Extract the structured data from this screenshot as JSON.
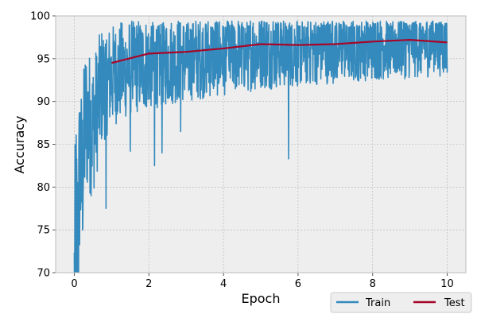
{
  "chart_data": {
    "type": "line",
    "title": "",
    "xlabel": "Epoch",
    "ylabel": "Accuracy",
    "xlim": [
      -0.5,
      10.5
    ],
    "ylim": [
      70,
      100
    ],
    "xticks": [
      0,
      2,
      4,
      6,
      8,
      10
    ],
    "yticks": [
      70,
      75,
      80,
      85,
      90,
      95,
      100
    ],
    "grid": true,
    "legend_position": "bottom-right",
    "colors": {
      "train": "#348abd",
      "test": "#a60628",
      "panel": "#eeeeee",
      "grid": "#b2b2b2"
    },
    "series": [
      {
        "name": "Train",
        "style": "noisy per-iteration line",
        "x_range": [
          0,
          10
        ],
        "points": [
          [
            0.0,
            68
          ],
          [
            0.05,
            76
          ],
          [
            0.1,
            72
          ],
          [
            0.15,
            84
          ],
          [
            0.2,
            80
          ],
          [
            0.3,
            88
          ],
          [
            0.5,
            87
          ],
          [
            0.75,
            92
          ],
          [
            1.0,
            93
          ],
          [
            1.5,
            94
          ],
          [
            2.0,
            94.5
          ],
          [
            3.0,
            95
          ],
          [
            4.0,
            95.5
          ],
          [
            5.0,
            96
          ],
          [
            6.0,
            96.2
          ],
          [
            7.0,
            96.5
          ],
          [
            8.0,
            96.7
          ],
          [
            9.0,
            96.8
          ],
          [
            10.0,
            97
          ]
        ],
        "spread": [
          [
            0.0,
            14
          ],
          [
            0.3,
            9
          ],
          [
            1.0,
            6
          ],
          [
            3.0,
            5
          ],
          [
            6.0,
            4.5
          ],
          [
            10.0,
            4
          ]
        ],
        "outliers": [
          [
            0.85,
            77.5
          ],
          [
            2.15,
            82.5
          ],
          [
            2.35,
            84
          ],
          [
            1.5,
            84.2
          ],
          [
            5.75,
            83.3
          ],
          [
            2.85,
            86.5
          ]
        ]
      },
      {
        "name": "Test",
        "x": [
          1,
          2,
          3,
          4,
          5,
          6,
          7,
          8,
          9,
          10
        ],
        "y": [
          94.5,
          95.6,
          95.8,
          96.2,
          96.7,
          96.6,
          96.7,
          97.0,
          97.2,
          96.9
        ]
      }
    ]
  }
}
